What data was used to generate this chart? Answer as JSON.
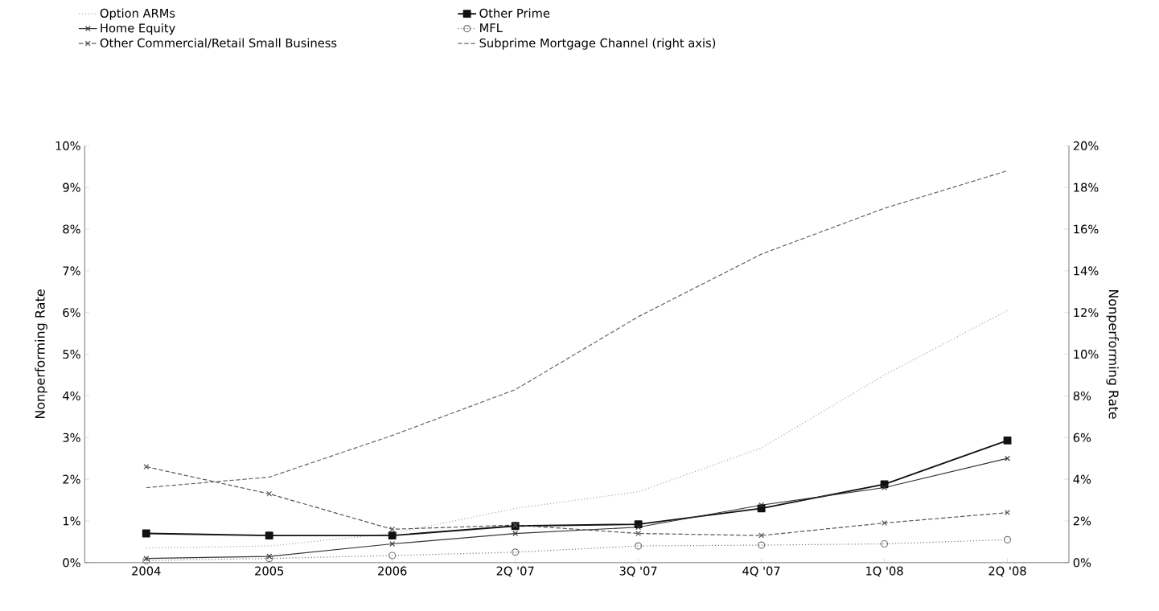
{
  "chart_data": {
    "type": "line",
    "ylabel": "Nonperforming Rate",
    "y2label": "Nonperforming Rate",
    "categories": [
      "2004",
      "2005",
      "2006",
      "2Q '07",
      "3Q '07",
      "4Q '07",
      "1Q '08",
      "2Q '08"
    ],
    "series": [
      {
        "name": "Option ARMs",
        "color": "#aaaaaa",
        "marker": "none",
        "line_style": "dotted",
        "values": [
          0.35,
          0.4,
          0.7,
          1.3,
          1.7,
          2.75,
          4.5,
          6.05
        ]
      },
      {
        "name": "Other Prime",
        "color": "#111111",
        "marker": "square",
        "line_style": "solid",
        "values": [
          0.7,
          0.65,
          0.65,
          0.88,
          0.92,
          1.3,
          1.88,
          2.93
        ]
      },
      {
        "name": "Home Equity",
        "color": "#333333",
        "marker": "cross",
        "line_style": "solid",
        "values": [
          0.1,
          0.15,
          0.45,
          0.7,
          0.85,
          1.38,
          1.8,
          2.5
        ]
      },
      {
        "name": "MFL",
        "color": "#777777",
        "marker": "circle",
        "line_style": "dotted",
        "values": [
          0.05,
          0.1,
          0.17,
          0.25,
          0.4,
          0.42,
          0.45,
          0.55
        ]
      },
      {
        "name": "Other Commercial/Retail Small Business",
        "color": "#555555",
        "marker": "cross",
        "line_style": "dashed",
        "values": [
          2.3,
          1.65,
          0.8,
          0.9,
          0.7,
          0.65,
          0.95,
          1.2
        ]
      },
      {
        "name": "Subprime Mortgage Channel (right axis)",
        "color": "#666666",
        "marker": "none",
        "line_style": "dashed",
        "axis": "y2",
        "values": [
          3.6,
          4.1,
          6.1,
          8.3,
          11.8,
          14.8,
          17.0,
          18.8
        ]
      }
    ],
    "ylim": [
      0,
      10
    ],
    "yticks": [
      {
        "value": 0,
        "label": "0%"
      },
      {
        "value": 1,
        "label": "1%"
      },
      {
        "value": 2,
        "label": "2%"
      },
      {
        "value": 3,
        "label": "3%"
      },
      {
        "value": 4,
        "label": "4%"
      },
      {
        "value": 5,
        "label": "5%"
      },
      {
        "value": 6,
        "label": "6%"
      },
      {
        "value": 7,
        "label": "7%"
      },
      {
        "value": 8,
        "label": "8%"
      },
      {
        "value": 9,
        "label": "9%"
      },
      {
        "value": 10,
        "label": "10%"
      }
    ],
    "y2lim": [
      0,
      20
    ],
    "y2ticks": [
      {
        "value": 0,
        "label": "0%"
      },
      {
        "value": 2,
        "label": "2%"
      },
      {
        "value": 4,
        "label": "4%"
      },
      {
        "value": 6,
        "label": "6%"
      },
      {
        "value": 8,
        "label": "8%"
      },
      {
        "value": 10,
        "label": "10%"
      },
      {
        "value": 12,
        "label": "12%"
      },
      {
        "value": 14,
        "label": "14%"
      },
      {
        "value": 16,
        "label": "16%"
      },
      {
        "value": 18,
        "label": "18%"
      },
      {
        "value": 20,
        "label": "20%"
      }
    ],
    "grid": false,
    "legend": "top"
  }
}
